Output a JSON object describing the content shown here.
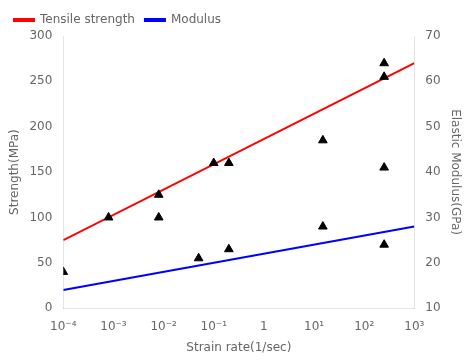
{
  "chart_data": {
    "type": "line",
    "xlabel": "Strain rate(1/sec)",
    "ylabel": "Strength(MPa)",
    "y2label": "Elastic Modulus(GPa)",
    "log": "x",
    "grid": false,
    "legend": "upper left",
    "xlim": [
      0.0001,
      1000
    ],
    "xticks": [
      {
        "value": 0.0001,
        "label": "10⁻⁴"
      },
      {
        "value": 0.001,
        "label": "10⁻³"
      },
      {
        "value": 0.01,
        "label": "10⁻²"
      },
      {
        "value": 0.1,
        "label": "10⁻¹"
      },
      1,
      {
        "value": 10,
        "label": "10¹"
      },
      {
        "value": 100,
        "label": "10²"
      },
      {
        "value": 1000,
        "label": "10³"
      }
    ],
    "ylim": [
      0,
      300
    ],
    "yticks": [
      0,
      50,
      100,
      150,
      200,
      250,
      300
    ],
    "y2lim": [
      10,
      70
    ],
    "y2ticks": [
      10,
      20,
      30,
      40,
      50,
      60,
      70
    ],
    "series": [
      {
        "name": "Tensile strength",
        "type": "line",
        "color": "#ff0000",
        "x": [
          0.0001,
          1000
        ],
        "values": [
          75,
          270
        ]
      },
      {
        "name": "Modulus",
        "type": "line",
        "color": "#0000ff",
        "axis": "y2",
        "x": [
          0.0001,
          1000
        ],
        "values": [
          14,
          28
        ]
      },
      {
        "type": "scatter",
        "color": "black",
        "marker": "triangle",
        "x": [
          0.0001,
          0.0008,
          0.008,
          0.008,
          0.05,
          0.1,
          0.2,
          0.2,
          15,
          15,
          250,
          250,
          250,
          250
        ],
        "values": [
          40,
          100,
          125,
          100,
          55,
          160,
          160,
          65,
          185,
          90,
          255,
          270,
          155,
          70
        ]
      }
    ]
  }
}
